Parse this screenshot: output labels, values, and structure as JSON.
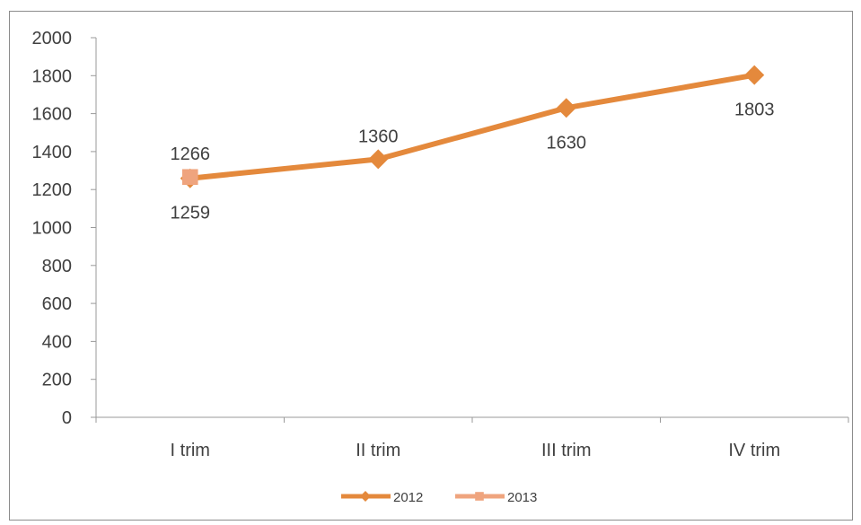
{
  "chart_data": {
    "type": "line",
    "categories": [
      "I trim",
      "II trim",
      "III trim",
      "IV trim"
    ],
    "series": [
      {
        "name": "2012",
        "values": [
          1259,
          1360,
          1630,
          1803
        ],
        "color": "#e4893c",
        "marker": "diamond",
        "labels": [
          "1259",
          "1360",
          "1630",
          "1803"
        ],
        "label_pos": [
          "below",
          "above",
          "below",
          "below"
        ]
      },
      {
        "name": "2013",
        "values": [
          1266,
          null,
          null,
          null
        ],
        "color": "#efa47e",
        "marker": "square",
        "labels": [
          "1266",
          null,
          null,
          null
        ],
        "label_pos": [
          "above",
          null,
          null,
          null
        ]
      }
    ],
    "ylim": [
      0,
      2000
    ],
    "yticks": [
      0,
      200,
      400,
      600,
      800,
      1000,
      1200,
      1400,
      1600,
      1800,
      2000
    ],
    "title": "",
    "xlabel": "",
    "ylabel": "",
    "grid": false,
    "legend_position": "bottom"
  }
}
